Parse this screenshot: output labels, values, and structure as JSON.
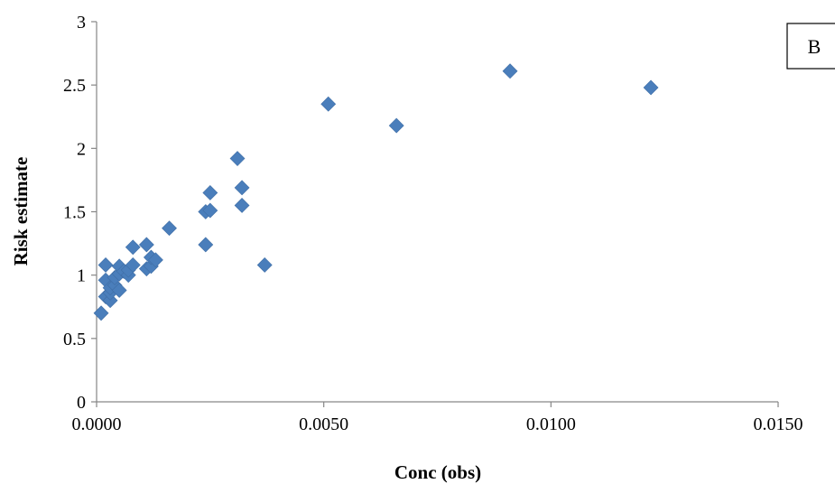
{
  "chart_data": {
    "type": "scatter",
    "xlabel": "Conc (obs)",
    "ylabel": "Risk estimate",
    "xlim": [
      0,
      0.015
    ],
    "ylim": [
      0,
      3
    ],
    "x_ticks": [
      "0.0000",
      "0.0050",
      "0.0100",
      "0.0150"
    ],
    "y_ticks": [
      "0",
      "0.5",
      "1",
      "1.5",
      "2",
      "2.5",
      "3"
    ],
    "panel_label": "B",
    "grid": false,
    "marker": "diamond",
    "marker_color": "#4a7ebb",
    "series": [
      {
        "points": [
          [
            0.0001,
            0.7
          ],
          [
            0.0002,
            0.83
          ],
          [
            0.0002,
            0.96
          ],
          [
            0.0002,
            1.08
          ],
          [
            0.0003,
            0.8
          ],
          [
            0.0003,
            0.86
          ],
          [
            0.0003,
            0.9
          ],
          [
            0.0004,
            0.92
          ],
          [
            0.0004,
            0.98
          ],
          [
            0.0005,
            0.88
          ],
          [
            0.0005,
            1.01
          ],
          [
            0.0005,
            1.07
          ],
          [
            0.0006,
            1.03
          ],
          [
            0.0007,
            1.0
          ],
          [
            0.0007,
            1.04
          ],
          [
            0.0008,
            1.08
          ],
          [
            0.0008,
            1.22
          ],
          [
            0.0011,
            1.05
          ],
          [
            0.0011,
            1.24
          ],
          [
            0.0012,
            1.07
          ],
          [
            0.0012,
            1.14
          ],
          [
            0.0013,
            1.12
          ],
          [
            0.0016,
            1.37
          ],
          [
            0.0024,
            1.24
          ],
          [
            0.0024,
            1.5
          ],
          [
            0.0025,
            1.51
          ],
          [
            0.0025,
            1.65
          ],
          [
            0.0031,
            1.92
          ],
          [
            0.0032,
            1.55
          ],
          [
            0.0032,
            1.69
          ],
          [
            0.0037,
            1.08
          ],
          [
            0.0051,
            2.35
          ],
          [
            0.0066,
            2.18
          ],
          [
            0.0091,
            2.61
          ],
          [
            0.0122,
            2.48
          ]
        ]
      }
    ]
  }
}
